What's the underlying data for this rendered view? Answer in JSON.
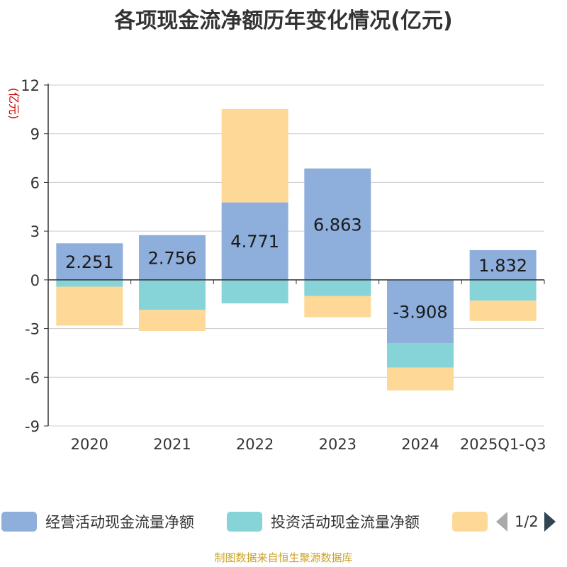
{
  "chart_data": {
    "type": "bar",
    "stacked": true,
    "title": "各项现金流净额历年变化情况(亿元)",
    "ylabel": "(亿元)",
    "xlabel": "",
    "categories": [
      "2020",
      "2021",
      "2022",
      "2023",
      "2024",
      "2025Q1-Q3"
    ],
    "ylim": [
      -9,
      12
    ],
    "yticks": [
      12,
      9,
      6,
      3,
      0,
      -3,
      -6,
      -9
    ],
    "grid": true,
    "series": [
      {
        "name": "经营活动现金流量净额",
        "color": "#8eaedb",
        "values": [
          2.251,
          2.756,
          4.771,
          6.863,
          -3.908,
          1.832
        ],
        "labels_shown": true
      },
      {
        "name": "投资活动现金流量净额",
        "color": "#86d4d8",
        "values": [
          -0.42,
          -1.85,
          -1.45,
          -1.0,
          -1.5,
          -1.28
        ],
        "labels_shown": false
      },
      {
        "name": "",
        "color": "#fdd896",
        "values": [
          -2.4,
          -1.3,
          5.75,
          -1.3,
          -1.4,
          -1.25
        ],
        "labels_shown": false
      }
    ]
  },
  "legend": {
    "items": [
      {
        "label": "经营活动现金流量净额",
        "color": "#8eaedb"
      },
      {
        "label": "投资活动现金流量净额",
        "color": "#86d4d8"
      },
      {
        "label": "",
        "color": "#fdd896"
      }
    ],
    "page_text": "1/2"
  },
  "source": "制图数据来自恒生聚源数据库"
}
